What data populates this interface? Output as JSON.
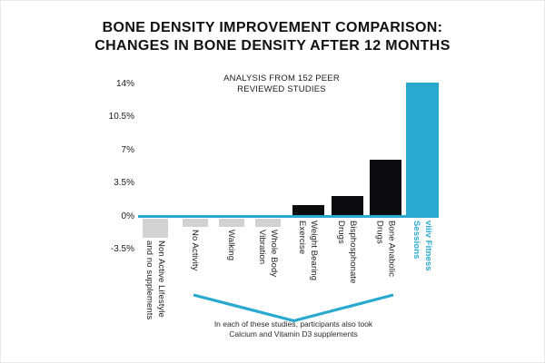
{
  "header": {
    "title_line1": "BONE DENSITY IMPROVEMENT COMPARISON:",
    "title_line2": "CHANGES IN BONE DENSITY AFTER 12 MONTHS"
  },
  "annotation": {
    "line1": "ANALYSIS FROM 152 PEER",
    "line2": "REVIEWED STUDIES"
  },
  "caption": {
    "line1": "In each of these studies, participants also took",
    "line2": "Calcium and Vitamin D3 supplements"
  },
  "colors": {
    "accent_cyan": "#29a9d0",
    "bar_black": "#0b0b0e",
    "bar_gray": "#d2d2d2",
    "text_dark": "#1c1c1c"
  },
  "chart_data": {
    "type": "bar",
    "title": "BONE DENSITY IMPROVEMENT COMPARISON: CHANGES IN BONE DENSITY AFTER 12 MONTHS",
    "annotation": "ANALYSIS FROM 152 PEER REVIEWED STUDIES",
    "bracket_note": "In each of these studies, participants also took Calcium and Vitamin D3 supplements",
    "unit": "%",
    "ylim": [
      -3.5,
      14
    ],
    "y_tick_labels": [
      "14%",
      "10.5%",
      "7%",
      "3.5%",
      "0%",
      "-3.5%"
    ],
    "y_tick_values": [
      14,
      10.5,
      7,
      3.5,
      0,
      -3.5
    ],
    "grid": false,
    "legend": false,
    "categories": [
      "Non Active Lifestyle and no supplements",
      "No Activity",
      "Walking",
      "Whole Body Vibration",
      "Weight Bearing Exercise",
      "Bisphosphonate Drugs",
      "Bone Anabolic Drugs",
      "viiiv Fitness Sessions"
    ],
    "category_label_lines": [
      [
        "Non Active Lifestyle",
        "and no supplements"
      ],
      [
        "No Activity"
      ],
      [
        "Walking"
      ],
      [
        "Whole Body",
        "Vibration"
      ],
      [
        "Weight Bearing",
        "Exercise"
      ],
      [
        "Bisphosphonate",
        "Drugs"
      ],
      [
        "Bone Anabolic",
        "Drugs"
      ],
      [
        "viiiv Fitness",
        "Sessions"
      ]
    ],
    "values": [
      -2.3,
      -1.2,
      -1.2,
      -1.2,
      1.2,
      2.1,
      6.0,
      14.1
    ],
    "bar_styles": [
      "gray",
      "gray",
      "gray",
      "gray",
      "black",
      "black",
      "black",
      "cyan"
    ],
    "bracket_span_categories": [
      "No Activity",
      "Bone Anabolic Drugs"
    ]
  }
}
